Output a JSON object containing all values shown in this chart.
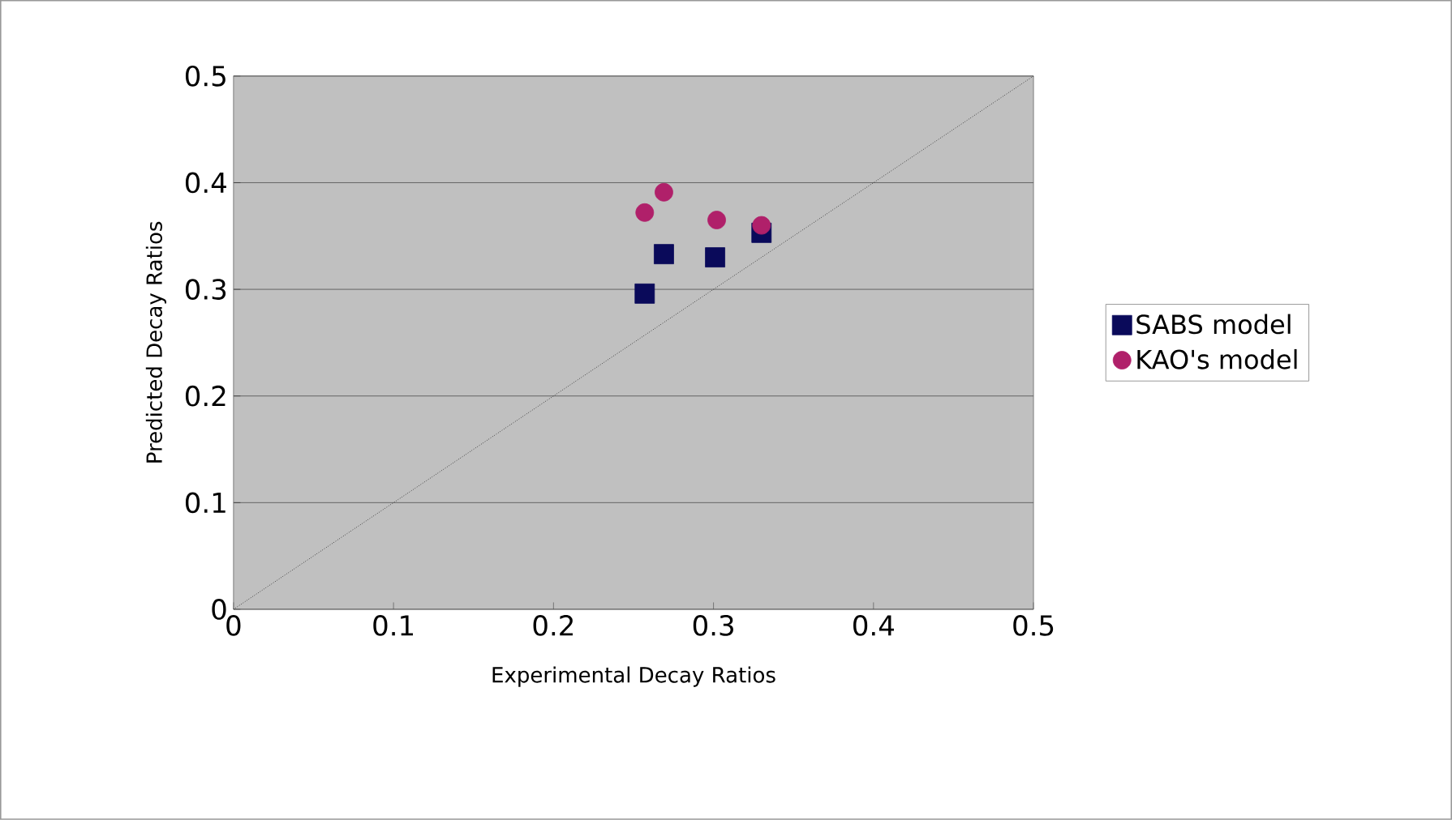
{
  "chart_data": {
    "type": "scatter",
    "xlabel": "Experimental Decay Ratios",
    "ylabel": "Predicted Decay Ratios",
    "xlim": [
      0,
      0.5
    ],
    "ylim": [
      0,
      0.5
    ],
    "xticks": [
      0,
      0.1,
      0.2,
      0.3,
      0.4,
      0.5
    ],
    "yticks": [
      0,
      0.1,
      0.2,
      0.3,
      0.4,
      0.5
    ],
    "grid": "y",
    "legend": "right",
    "series": [
      {
        "name": "SABS model",
        "color": "#0a0a5a",
        "marker": "square",
        "x": [
          0.257,
          0.269,
          0.301,
          0.33
        ],
        "values": [
          0.296,
          0.333,
          0.33,
          0.353
        ]
      },
      {
        "name": "KAO's model",
        "color": "#b0206a",
        "marker": "circle",
        "x": [
          0.257,
          0.269,
          0.302,
          0.33
        ],
        "values": [
          0.372,
          0.391,
          0.365,
          0.36
        ]
      },
      {
        "type": "line",
        "color": "#000000",
        "marker": "none",
        "line_style": "dotted",
        "x": [
          0,
          0.5
        ],
        "values": [
          0,
          0.5
        ]
      }
    ]
  }
}
